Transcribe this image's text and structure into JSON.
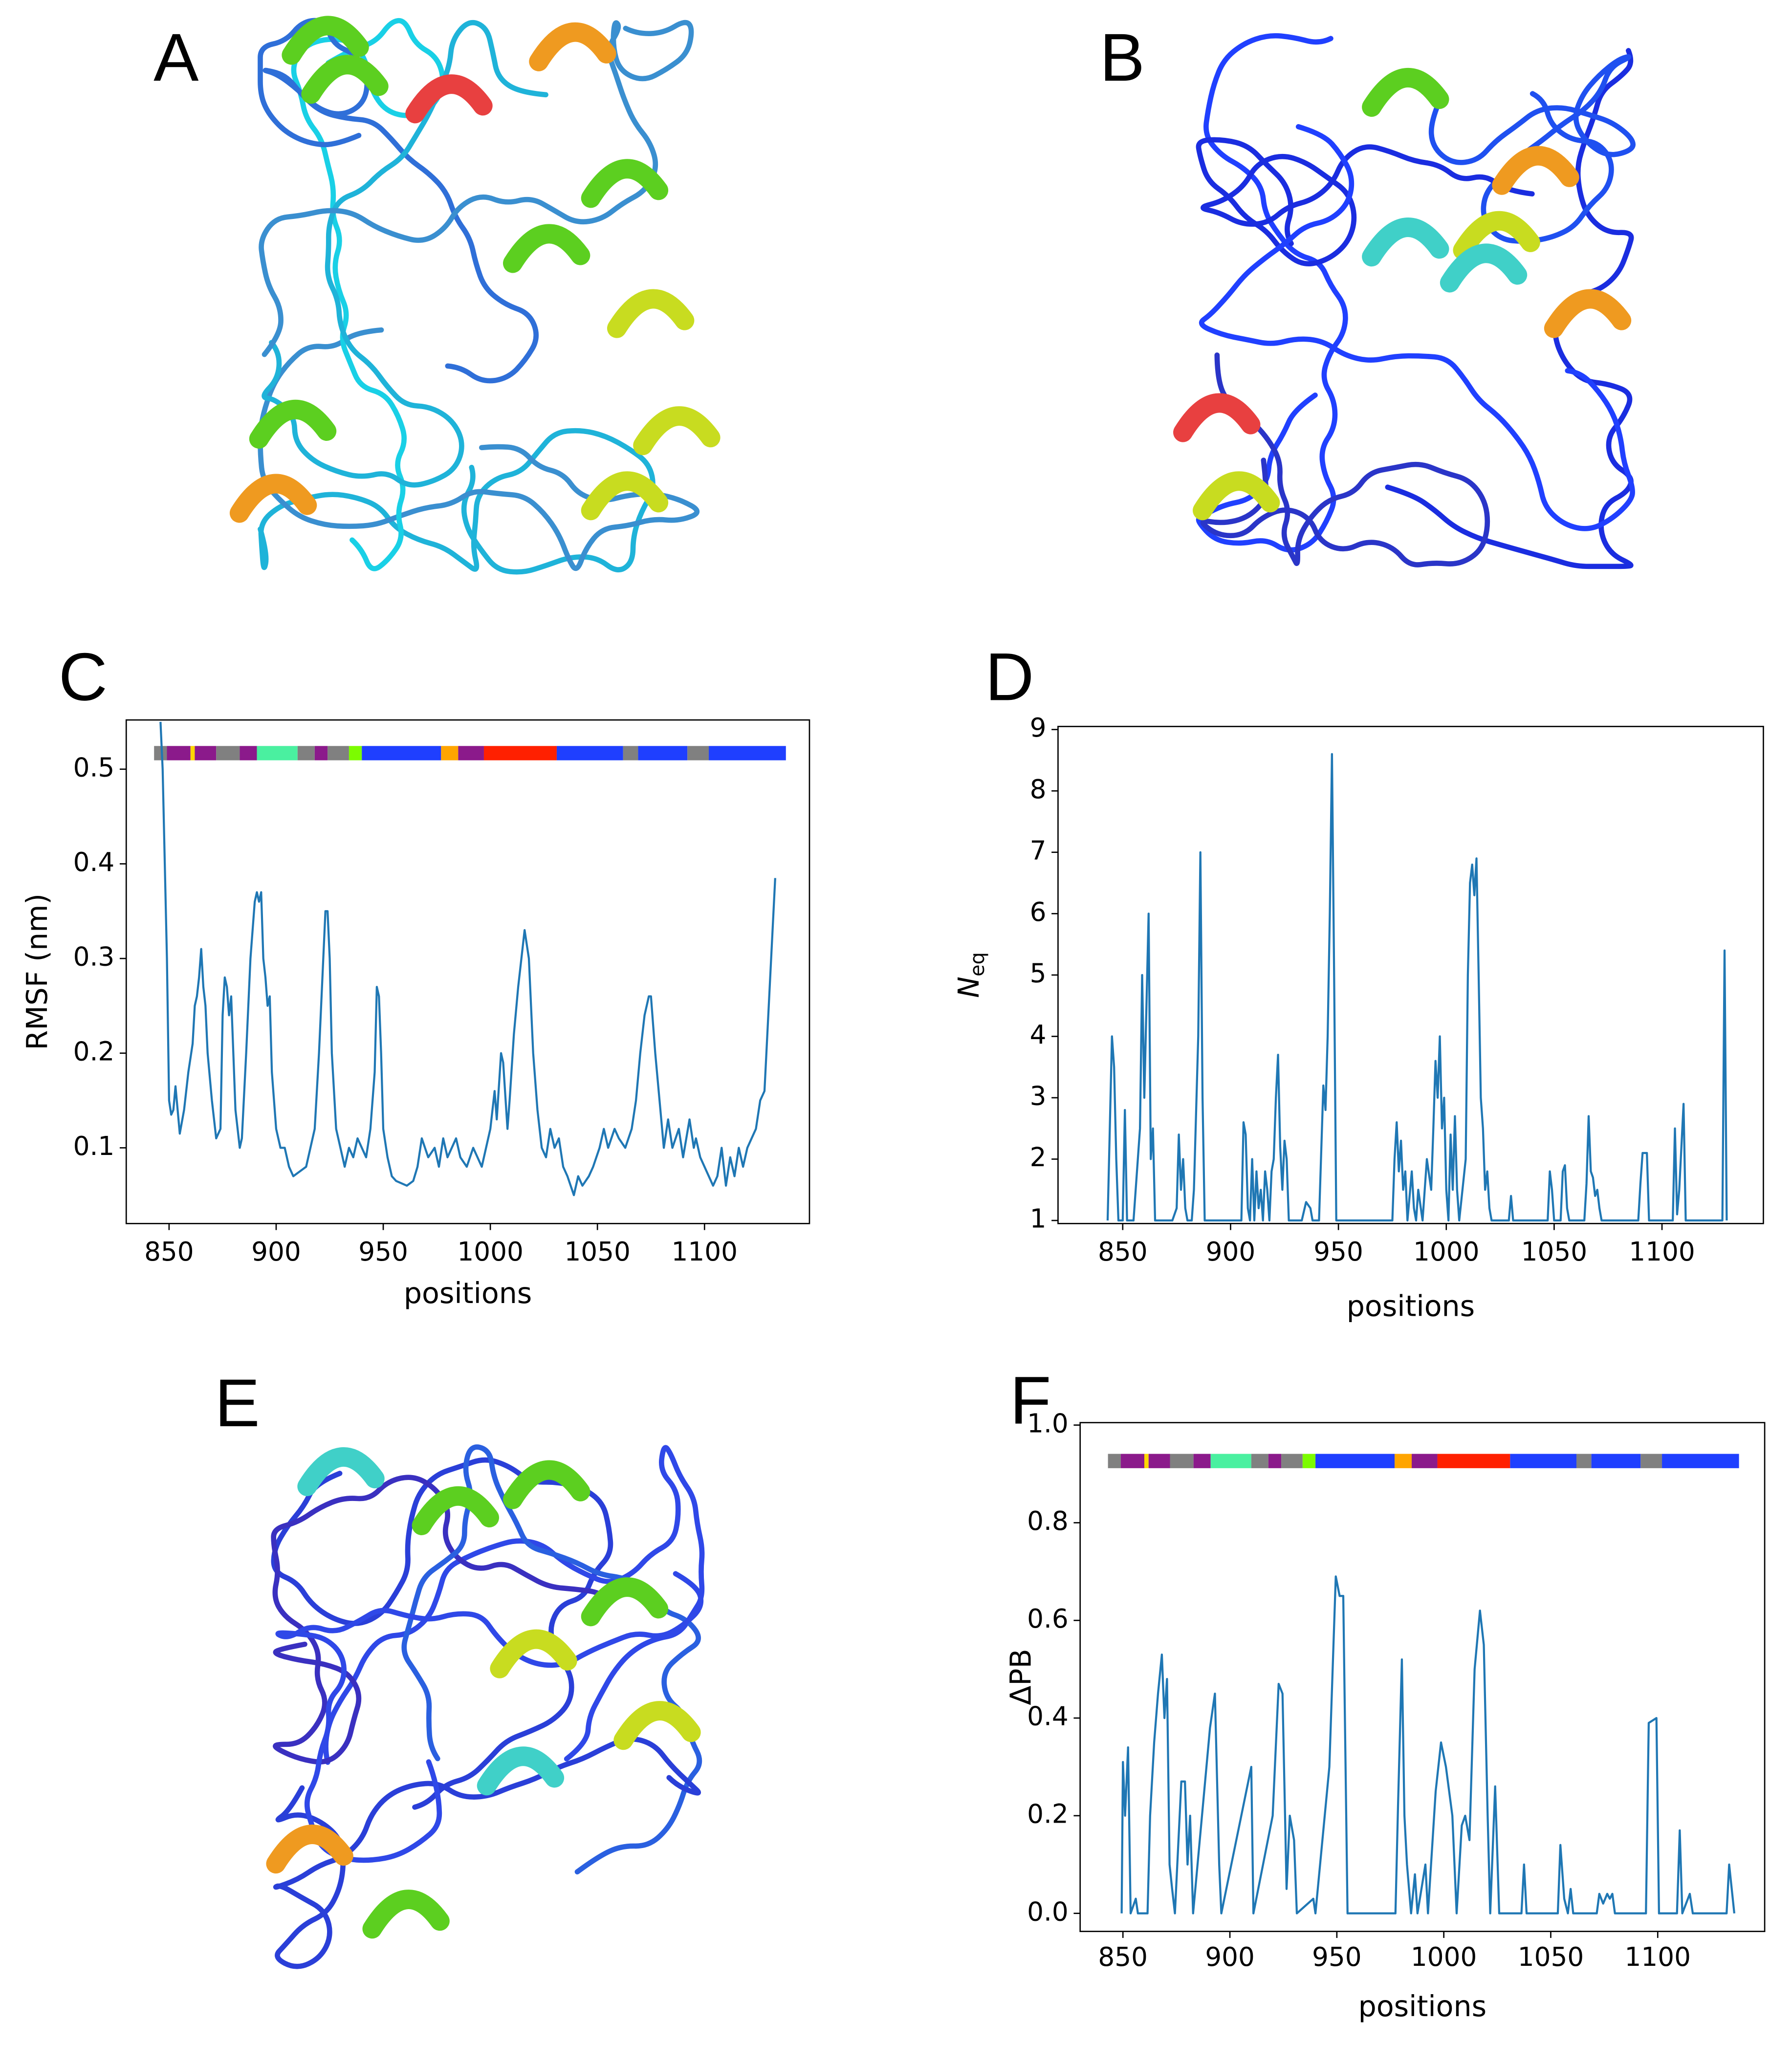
{
  "images": [
    {
      "label": "A"
    },
    {
      "label": "B"
    },
    {
      "label": "E"
    }
  ],
  "chart_data": [
    {
      "type": "line",
      "panel_label": "C",
      "xlabel": "positions",
      "ylabel": "RMSF (nm)",
      "color": "#1f77b4",
      "xlim": [
        830,
        1149
      ],
      "ylim": [
        0.02,
        0.552
      ],
      "xticks": [
        850,
        900,
        950,
        1000,
        1050,
        1100
      ],
      "yticks": [
        0.1,
        0.2,
        0.3,
        0.4,
        0.5
      ],
      "segments": [
        {
          "start": 843,
          "end": 849,
          "color": "#808080"
        },
        {
          "start": 849,
          "end": 860,
          "color": "#8b1a8b"
        },
        {
          "start": 860,
          "end": 862,
          "color": "#ffd700"
        },
        {
          "start": 862,
          "end": 872,
          "color": "#8b1a8b"
        },
        {
          "start": 872,
          "end": 883,
          "color": "#808080"
        },
        {
          "start": 883,
          "end": 891,
          "color": "#8b1a8b"
        },
        {
          "start": 891,
          "end": 910,
          "color": "#4af0a0"
        },
        {
          "start": 910,
          "end": 918,
          "color": "#808080"
        },
        {
          "start": 918,
          "end": 924,
          "color": "#8b1a8b"
        },
        {
          "start": 924,
          "end": 934,
          "color": "#808080"
        },
        {
          "start": 934,
          "end": 940,
          "color": "#7cfc00"
        },
        {
          "start": 940,
          "end": 977,
          "color": "#1f3fff"
        },
        {
          "start": 977,
          "end": 985,
          "color": "#ffa500"
        },
        {
          "start": 985,
          "end": 997,
          "color": "#8b1a8b"
        },
        {
          "start": 997,
          "end": 1031,
          "color": "#ff2000"
        },
        {
          "start": 1031,
          "end": 1062,
          "color": "#1f3fff"
        },
        {
          "start": 1062,
          "end": 1069,
          "color": "#808080"
        },
        {
          "start": 1069,
          "end": 1092,
          "color": "#1f3fff"
        },
        {
          "start": 1092,
          "end": 1102,
          "color": "#808080"
        },
        {
          "start": 1102,
          "end": 1138,
          "color": "#1f3fff"
        }
      ],
      "x": [
        846,
        847,
        849,
        850,
        851,
        852,
        853,
        854,
        855,
        857,
        859,
        861,
        862,
        863,
        864,
        865,
        866,
        867,
        868,
        870,
        872,
        874,
        875,
        876,
        877,
        878,
        879,
        880,
        881,
        882,
        883,
        884,
        886,
        888,
        889,
        890,
        891,
        892,
        893,
        894,
        895,
        896,
        897,
        898,
        900,
        902,
        904,
        906,
        908,
        911,
        914,
        916,
        918,
        920,
        922,
        923,
        924,
        925,
        926,
        928,
        930,
        932,
        934,
        936,
        938,
        940,
        942,
        944,
        946,
        947,
        948,
        949,
        950,
        952,
        954,
        956,
        961,
        964,
        966,
        968,
        971,
        974,
        976,
        978,
        980,
        982,
        984,
        986,
        989,
        992,
        994,
        996,
        998,
        1000,
        1002,
        1003,
        1005,
        1006,
        1008,
        1009,
        1011,
        1013,
        1015,
        1016,
        1018,
        1020,
        1022,
        1024,
        1026,
        1028,
        1030,
        1032,
        1034,
        1036,
        1039,
        1041,
        1043,
        1046,
        1048,
        1051,
        1053,
        1055,
        1058,
        1060,
        1063,
        1066,
        1068,
        1070,
        1072,
        1074,
        1075,
        1077,
        1079,
        1081,
        1083,
        1085,
        1088,
        1090,
        1093,
        1095,
        1096,
        1098,
        1100,
        1102,
        1104,
        1106,
        1108,
        1110,
        1112,
        1114,
        1116,
        1118,
        1120,
        1122,
        1124,
        1126,
        1128,
        1130,
        1133
      ],
      "values": [
        0.55,
        0.5,
        0.3,
        0.15,
        0.135,
        0.14,
        0.165,
        0.14,
        0.115,
        0.14,
        0.18,
        0.21,
        0.25,
        0.26,
        0.28,
        0.31,
        0.27,
        0.25,
        0.2,
        0.15,
        0.11,
        0.12,
        0.24,
        0.28,
        0.27,
        0.24,
        0.26,
        0.2,
        0.14,
        0.12,
        0.1,
        0.11,
        0.2,
        0.3,
        0.33,
        0.36,
        0.37,
        0.36,
        0.37,
        0.3,
        0.28,
        0.25,
        0.26,
        0.18,
        0.12,
        0.1,
        0.1,
        0.08,
        0.07,
        0.075,
        0.08,
        0.1,
        0.12,
        0.2,
        0.3,
        0.35,
        0.35,
        0.3,
        0.2,
        0.12,
        0.1,
        0.08,
        0.1,
        0.09,
        0.11,
        0.1,
        0.09,
        0.12,
        0.18,
        0.27,
        0.26,
        0.2,
        0.12,
        0.09,
        0.07,
        0.065,
        0.06,
        0.065,
        0.08,
        0.11,
        0.09,
        0.1,
        0.08,
        0.11,
        0.09,
        0.1,
        0.11,
        0.09,
        0.08,
        0.1,
        0.09,
        0.08,
        0.1,
        0.12,
        0.16,
        0.13,
        0.2,
        0.19,
        0.12,
        0.15,
        0.22,
        0.27,
        0.31,
        0.33,
        0.3,
        0.2,
        0.14,
        0.1,
        0.09,
        0.12,
        0.1,
        0.11,
        0.08,
        0.07,
        0.05,
        0.07,
        0.06,
        0.07,
        0.08,
        0.1,
        0.12,
        0.1,
        0.12,
        0.11,
        0.1,
        0.12,
        0.15,
        0.2,
        0.24,
        0.26,
        0.26,
        0.2,
        0.15,
        0.1,
        0.13,
        0.1,
        0.12,
        0.09,
        0.13,
        0.1,
        0.11,
        0.09,
        0.08,
        0.07,
        0.06,
        0.07,
        0.1,
        0.06,
        0.09,
        0.07,
        0.1,
        0.08,
        0.1,
        0.11,
        0.12,
        0.15,
        0.16,
        0.25,
        0.385
      ]
    },
    {
      "type": "line",
      "panel_label": "D",
      "xlabel": "positions",
      "ylabel": "N",
      "ylabel_subscript": "eq",
      "color": "#1f77b4",
      "xlim": [
        820,
        1147
      ],
      "ylim": [
        0.95,
        9.05
      ],
      "xticks": [
        850,
        900,
        950,
        1000,
        1050,
        1100
      ],
      "yticks": [
        1,
        2,
        3,
        4,
        5,
        6,
        7,
        8,
        9
      ],
      "x": [
        843,
        844,
        845,
        846,
        847,
        848,
        850,
        851,
        852,
        855,
        857,
        858,
        859,
        860,
        861,
        862,
        863,
        864,
        865,
        869,
        873,
        875,
        876,
        877,
        878,
        879,
        880,
        882,
        883,
        885,
        886,
        887,
        888,
        905,
        906,
        907,
        908,
        909,
        910,
        911,
        912,
        913,
        914,
        915,
        916,
        917,
        918,
        919,
        920,
        921,
        922,
        923,
        924,
        925,
        926,
        927,
        933,
        935,
        937,
        938,
        941,
        943,
        944,
        945,
        946,
        947,
        948,
        949,
        975,
        976,
        977,
        978,
        979,
        980,
        981,
        982,
        984,
        985,
        986,
        987,
        989,
        991,
        993,
        994,
        995,
        996,
        997,
        998,
        999,
        1000,
        1001,
        1002,
        1003,
        1004,
        1005,
        1006,
        1009,
        1010,
        1011,
        1012,
        1013,
        1014,
        1015,
        1016,
        1017,
        1018,
        1019,
        1020,
        1021,
        1029,
        1030,
        1031,
        1047,
        1048,
        1049,
        1050,
        1053,
        1054,
        1055,
        1056,
        1057,
        1064,
        1065,
        1066,
        1067,
        1068,
        1069,
        1070,
        1071,
        1072,
        1089,
        1090,
        1091,
        1093,
        1094,
        1105,
        1106,
        1107,
        1108,
        1110,
        1111,
        1128,
        1129,
        1130
      ],
      "values": [
        1,
        2.5,
        4,
        3.5,
        2,
        1,
        1,
        2.8,
        1,
        1,
        2,
        2.5,
        5,
        3,
        4.5,
        6,
        2,
        2.5,
        1,
        1,
        1,
        1.2,
        2.4,
        1.5,
        2,
        1.2,
        1,
        1,
        1.5,
        4,
        7,
        3,
        1,
        1,
        2.6,
        2.4,
        1.2,
        1,
        2,
        1,
        1.8,
        1.2,
        1.5,
        1,
        1.8,
        1.5,
        1,
        1.8,
        2,
        3,
        3.7,
        2.2,
        1.5,
        2.3,
        2,
        1,
        1,
        1.3,
        1.2,
        1,
        1,
        3.2,
        2.8,
        4,
        6,
        8.6,
        5,
        1,
        1,
        2,
        2.6,
        1.8,
        2.3,
        1.5,
        1.8,
        1,
        1.8,
        1.2,
        1,
        1.5,
        1,
        2,
        1.5,
        2.5,
        3.6,
        3,
        4,
        2.5,
        3,
        1.5,
        1,
        2.4,
        1.5,
        2.7,
        1.5,
        1,
        2,
        5,
        6.5,
        6.8,
        6.3,
        6.9,
        5,
        3,
        2.5,
        1.5,
        1.8,
        1.2,
        1,
        1,
        1.4,
        1,
        1,
        1.8,
        1.5,
        1,
        1,
        1.8,
        1.9,
        1.2,
        1,
        1,
        1.6,
        2.7,
        1.8,
        1.7,
        1.4,
        1.5,
        1.2,
        1,
        1,
        1.6,
        2.1,
        2.1,
        1,
        1,
        2.5,
        1.1,
        1.5,
        2.9,
        1,
        1,
        5.4,
        1
      ]
    },
    {
      "type": "line",
      "panel_label": "F",
      "xlabel": "positions",
      "ylabel": "ΔPB",
      "color": "#1f77b4",
      "xlim": [
        830,
        1150
      ],
      "ylim": [
        -0.037,
        1.005
      ],
      "xticks": [
        850,
        900,
        950,
        1000,
        1050,
        1100
      ],
      "yticks": [
        {
          "value": 0,
          "label": "0.0"
        },
        0.2,
        0.4,
        0.6,
        0.8,
        {
          "value": 1,
          "label": "1.0"
        }
      ],
      "segments": [
        {
          "start": 843,
          "end": 849,
          "color": "#808080"
        },
        {
          "start": 849,
          "end": 860,
          "color": "#8b1a8b"
        },
        {
          "start": 860,
          "end": 862,
          "color": "#ffd700"
        },
        {
          "start": 862,
          "end": 872,
          "color": "#8b1a8b"
        },
        {
          "start": 872,
          "end": 883,
          "color": "#808080"
        },
        {
          "start": 883,
          "end": 891,
          "color": "#8b1a8b"
        },
        {
          "start": 891,
          "end": 910,
          "color": "#4af0a0"
        },
        {
          "start": 910,
          "end": 918,
          "color": "#808080"
        },
        {
          "start": 918,
          "end": 924,
          "color": "#8b1a8b"
        },
        {
          "start": 924,
          "end": 934,
          "color": "#808080"
        },
        {
          "start": 934,
          "end": 940,
          "color": "#7cfc00"
        },
        {
          "start": 940,
          "end": 977,
          "color": "#1f3fff"
        },
        {
          "start": 977,
          "end": 985,
          "color": "#ffa500"
        },
        {
          "start": 985,
          "end": 997,
          "color": "#8b1a8b"
        },
        {
          "start": 997,
          "end": 1031,
          "color": "#ff2000"
        },
        {
          "start": 1031,
          "end": 1062,
          "color": "#1f3fff"
        },
        {
          "start": 1062,
          "end": 1069,
          "color": "#808080"
        },
        {
          "start": 1069,
          "end": 1092,
          "color": "#1f3fff"
        },
        {
          "start": 1092,
          "end": 1102,
          "color": "#808080"
        },
        {
          "start": 1102,
          "end": 1138,
          "color": "#1f3fff"
        }
      ],
      "x": [
        849.4,
        850,
        851,
        852.4,
        853.6,
        856,
        857,
        861.5,
        862.7,
        864.6,
        866.4,
        868.2,
        869.4,
        870.6,
        871.8,
        873,
        874.3,
        877.3,
        879,
        880.2,
        881.4,
        882.8,
        890.7,
        893,
        895,
        896,
        910,
        911,
        920,
        922.8,
        924.6,
        926.5,
        928,
        930,
        931.3,
        939,
        940,
        946.5,
        949.5,
        951.3,
        953,
        955,
        977.4,
        978.6,
        980.4,
        981.6,
        982.8,
        984.7,
        986.5,
        987.7,
        991.4,
        992.6,
        996.2,
        998.7,
        1001,
        1004,
        1006,
        1008.4,
        1010,
        1012,
        1014.4,
        1016.9,
        1018.7,
        1020.5,
        1021.7,
        1024,
        1025.9,
        1036.3,
        1037.5,
        1038.7,
        1053.3,
        1054.5,
        1056.3,
        1058,
        1059.3,
        1060.5,
        1071.5,
        1072.7,
        1074.5,
        1076.4,
        1077.6,
        1078.8,
        1080,
        1094.5,
        1095.8,
        1099.4,
        1100.6,
        1109,
        1110.3,
        1111.5,
        1115,
        1116.4,
        1132.2,
        1133.4,
        1135.8
      ],
      "values": [
        0,
        0.31,
        0.2,
        0.34,
        0,
        0.03,
        0,
        0,
        0.2,
        0.35,
        0.45,
        0.53,
        0.4,
        0.48,
        0.1,
        0.05,
        0,
        0.27,
        0.27,
        0.1,
        0.2,
        0,
        0.38,
        0.45,
        0.1,
        0,
        0.3,
        0,
        0.2,
        0.47,
        0.45,
        0.05,
        0.2,
        0.15,
        0,
        0.03,
        0,
        0.3,
        0.69,
        0.65,
        0.65,
        0,
        0,
        0.22,
        0.52,
        0.2,
        0.1,
        0,
        0.08,
        0,
        0.1,
        0,
        0.25,
        0.35,
        0.3,
        0.2,
        0,
        0.18,
        0.2,
        0.15,
        0.5,
        0.62,
        0.55,
        0.2,
        0,
        0.26,
        0,
        0,
        0.1,
        0,
        0,
        0.14,
        0.03,
        0,
        0.05,
        0,
        0,
        0.04,
        0.02,
        0.04,
        0.03,
        0.04,
        0,
        0,
        0.39,
        0.4,
        0,
        0,
        0.17,
        0,
        0.04,
        0,
        0,
        0.1,
        0
      ]
    }
  ]
}
